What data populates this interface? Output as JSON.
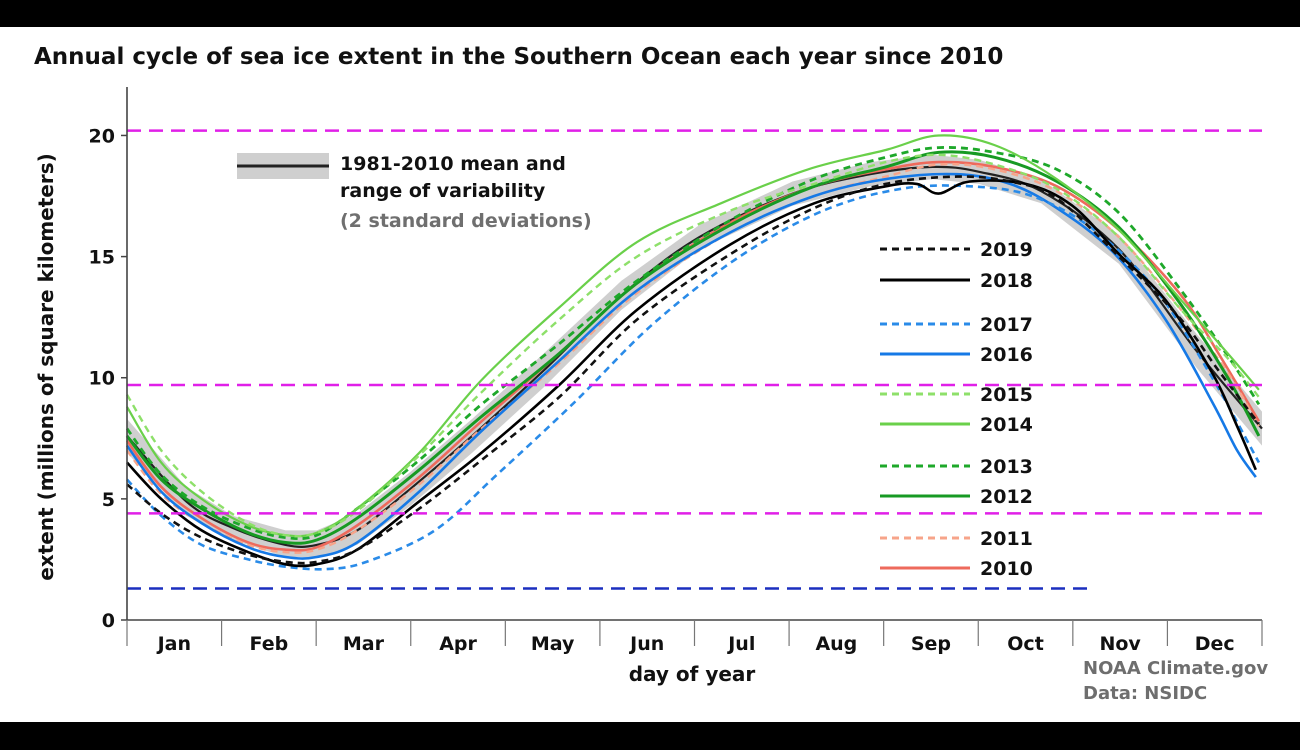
{
  "chart_data": {
    "type": "line",
    "title": "Annual cycle of sea ice extent in the Southern Ocean each year since 2010",
    "xlabel": "day of year",
    "ylabel": "extent (millions of square kilometers)",
    "xlim": [
      1,
      366
    ],
    "ylim": [
      0,
      22
    ],
    "yticks": [
      0,
      5,
      10,
      15,
      20
    ],
    "months": [
      "Jan",
      "Feb",
      "Mar",
      "Apr",
      "May",
      "Jun",
      "Jul",
      "Aug",
      "Sep",
      "Oct",
      "Nov",
      "Dec"
    ],
    "legend_placement": "upper-left and right-center",
    "band": {
      "label_line1": "1981-2010 mean and",
      "label_line2": "range of variability",
      "label_line3": "(2 standard deviations)",
      "mean": [
        [
          1,
          7.6
        ],
        [
          20,
          4.9
        ],
        [
          35,
          3.8
        ],
        [
          52,
          3.1
        ],
        [
          62,
          3.1
        ],
        [
          75,
          3.7
        ],
        [
          92,
          5.4
        ],
        [
          112,
          7.6
        ],
        [
          135,
          10.3
        ],
        [
          160,
          13.4
        ],
        [
          185,
          15.8
        ],
        [
          215,
          17.6
        ],
        [
          240,
          18.4
        ],
        [
          260,
          18.7
        ],
        [
          275,
          18.5
        ],
        [
          295,
          17.7
        ],
        [
          320,
          15.3
        ],
        [
          345,
          11.1
        ],
        [
          366,
          7.9
        ]
      ],
      "upper": [
        [
          1,
          8.3
        ],
        [
          20,
          5.5
        ],
        [
          35,
          4.3
        ],
        [
          52,
          3.7
        ],
        [
          62,
          3.7
        ],
        [
          75,
          4.4
        ],
        [
          92,
          6.1
        ],
        [
          112,
          8.3
        ],
        [
          135,
          11.0
        ],
        [
          160,
          14.0
        ],
        [
          185,
          16.3
        ],
        [
          215,
          18.1
        ],
        [
          240,
          18.9
        ],
        [
          260,
          19.2
        ],
        [
          275,
          19.0
        ],
        [
          295,
          18.2
        ],
        [
          320,
          15.9
        ],
        [
          345,
          11.8
        ],
        [
          366,
          8.6
        ]
      ],
      "lower": [
        [
          1,
          6.9
        ],
        [
          20,
          4.3
        ],
        [
          35,
          3.3
        ],
        [
          52,
          2.6
        ],
        [
          62,
          2.6
        ],
        [
          75,
          3.1
        ],
        [
          92,
          4.7
        ],
        [
          112,
          6.9
        ],
        [
          135,
          9.6
        ],
        [
          160,
          12.8
        ],
        [
          185,
          15.3
        ],
        [
          215,
          17.1
        ],
        [
          240,
          17.9
        ],
        [
          260,
          18.2
        ],
        [
          275,
          18.0
        ],
        [
          295,
          17.2
        ],
        [
          320,
          14.7
        ],
        [
          345,
          10.4
        ],
        [
          366,
          7.2
        ]
      ],
      "line_color": "#222222",
      "band_color": "#cfcfcf"
    },
    "series": [
      {
        "name": "2019",
        "color": "#111111",
        "dashed": true,
        "width": 2.6,
        "points": [
          [
            1,
            5.6
          ],
          [
            12,
            4.4
          ],
          [
            25,
            3.4
          ],
          [
            40,
            2.7
          ],
          [
            52,
            2.4
          ],
          [
            62,
            2.4
          ],
          [
            75,
            2.9
          ],
          [
            95,
            4.6
          ],
          [
            115,
            6.6
          ],
          [
            140,
            9.2
          ],
          [
            165,
            12.4
          ],
          [
            195,
            15.1
          ],
          [
            222,
            17.0
          ],
          [
            245,
            18.0
          ],
          [
            268,
            18.3
          ],
          [
            285,
            18.1
          ],
          [
            300,
            17.4
          ],
          [
            320,
            15.0
          ],
          [
            340,
            12.4
          ],
          [
            352,
            10.3
          ],
          [
            365,
            8.1
          ]
        ]
      },
      {
        "name": "2018",
        "color": "#000000",
        "dashed": false,
        "width": 2.6,
        "points": [
          [
            1,
            6.5
          ],
          [
            12,
            5.0
          ],
          [
            25,
            3.7
          ],
          [
            40,
            2.8
          ],
          [
            52,
            2.3
          ],
          [
            62,
            2.3
          ],
          [
            75,
            2.9
          ],
          [
            95,
            4.9
          ],
          [
            115,
            6.9
          ],
          [
            140,
            9.7
          ],
          [
            165,
            12.8
          ],
          [
            195,
            15.5
          ],
          [
            222,
            17.2
          ],
          [
            245,
            17.9
          ],
          [
            255,
            18.0
          ],
          [
            262,
            17.6
          ],
          [
            272,
            18.1
          ],
          [
            290,
            18.0
          ],
          [
            305,
            17.1
          ],
          [
            320,
            15.1
          ],
          [
            335,
            13.2
          ],
          [
            350,
            10.2
          ],
          [
            358,
            8.0
          ],
          [
            364,
            6.2
          ]
        ]
      },
      {
        "name": "2017",
        "color": "#2a8be8",
        "dashed": true,
        "width": 2.6,
        "points": [
          [
            1,
            5.8
          ],
          [
            12,
            4.3
          ],
          [
            25,
            3.1
          ],
          [
            40,
            2.5
          ],
          [
            52,
            2.2
          ],
          [
            65,
            2.1
          ],
          [
            78,
            2.4
          ],
          [
            100,
            3.7
          ],
          [
            120,
            6.0
          ],
          [
            145,
            9.0
          ],
          [
            170,
            12.2
          ],
          [
            198,
            15.0
          ],
          [
            225,
            16.9
          ],
          [
            250,
            17.8
          ],
          [
            272,
            17.9
          ],
          [
            292,
            17.5
          ],
          [
            312,
            16.1
          ],
          [
            332,
            13.6
          ],
          [
            350,
            10.0
          ],
          [
            365,
            6.5
          ]
        ]
      },
      {
        "name": "2016",
        "color": "#1679e6",
        "dashed": false,
        "width": 2.6,
        "points": [
          [
            1,
            7.2
          ],
          [
            12,
            5.3
          ],
          [
            25,
            4.0
          ],
          [
            40,
            3.0
          ],
          [
            52,
            2.6
          ],
          [
            62,
            2.6
          ],
          [
            75,
            3.2
          ],
          [
            95,
            5.3
          ],
          [
            115,
            7.8
          ],
          [
            140,
            10.7
          ],
          [
            165,
            13.6
          ],
          [
            195,
            16.0
          ],
          [
            222,
            17.5
          ],
          [
            245,
            18.2
          ],
          [
            268,
            18.4
          ],
          [
            285,
            18.0
          ],
          [
            300,
            17.0
          ],
          [
            318,
            15.2
          ],
          [
            335,
            12.4
          ],
          [
            350,
            9.0
          ],
          [
            358,
            7.0
          ],
          [
            364,
            5.9
          ]
        ]
      },
      {
        "name": "2015",
        "color": "#8ee06a",
        "dashed": true,
        "width": 2.4,
        "points": [
          [
            1,
            9.3
          ],
          [
            12,
            7.0
          ],
          [
            25,
            5.3
          ],
          [
            40,
            4.0
          ],
          [
            52,
            3.5
          ],
          [
            62,
            3.6
          ],
          [
            75,
            4.5
          ],
          [
            95,
            6.8
          ],
          [
            115,
            9.4
          ],
          [
            140,
            12.4
          ],
          [
            165,
            15.0
          ],
          [
            195,
            16.9
          ],
          [
            222,
            18.0
          ],
          [
            245,
            18.9
          ],
          [
            262,
            19.2
          ],
          [
            280,
            18.8
          ],
          [
            300,
            17.8
          ],
          [
            320,
            15.8
          ],
          [
            340,
            12.8
          ],
          [
            355,
            10.8
          ],
          [
            365,
            9.2
          ]
        ]
      },
      {
        "name": "2014",
        "color": "#6ad04a",
        "dashed": false,
        "width": 2.2,
        "points": [
          [
            1,
            8.8
          ],
          [
            12,
            6.5
          ],
          [
            25,
            5.0
          ],
          [
            40,
            3.9
          ],
          [
            52,
            3.5
          ],
          [
            62,
            3.6
          ],
          [
            75,
            4.6
          ],
          [
            95,
            6.9
          ],
          [
            115,
            9.9
          ],
          [
            140,
            12.9
          ],
          [
            165,
            15.6
          ],
          [
            192,
            17.2
          ],
          [
            220,
            18.6
          ],
          [
            245,
            19.4
          ],
          [
            262,
            20.0
          ],
          [
            280,
            19.6
          ],
          [
            300,
            18.2
          ],
          [
            320,
            16.1
          ],
          [
            340,
            13.2
          ],
          [
            355,
            11.0
          ],
          [
            365,
            9.5
          ]
        ]
      },
      {
        "name": "2013",
        "color": "#1ea82a",
        "dashed": true,
        "width": 2.8,
        "points": [
          [
            1,
            7.9
          ],
          [
            12,
            6.0
          ],
          [
            25,
            4.7
          ],
          [
            40,
            3.8
          ],
          [
            52,
            3.4
          ],
          [
            62,
            3.5
          ],
          [
            75,
            4.6
          ],
          [
            95,
            6.6
          ],
          [
            115,
            8.9
          ],
          [
            140,
            11.4
          ],
          [
            165,
            14.0
          ],
          [
            195,
            16.5
          ],
          [
            222,
            18.2
          ],
          [
            245,
            19.1
          ],
          [
            262,
            19.5
          ],
          [
            280,
            19.3
          ],
          [
            300,
            18.6
          ],
          [
            320,
            16.8
          ],
          [
            340,
            13.6
          ],
          [
            355,
            10.9
          ],
          [
            365,
            8.9
          ]
        ]
      },
      {
        "name": "2012",
        "color": "#179a23",
        "dashed": false,
        "width": 3.0,
        "points": [
          [
            1,
            7.6
          ],
          [
            12,
            5.8
          ],
          [
            25,
            4.6
          ],
          [
            40,
            3.6
          ],
          [
            52,
            3.2
          ],
          [
            62,
            3.3
          ],
          [
            75,
            4.2
          ],
          [
            95,
            6.2
          ],
          [
            115,
            8.4
          ],
          [
            140,
            11.0
          ],
          [
            165,
            13.9
          ],
          [
            195,
            16.3
          ],
          [
            222,
            17.9
          ],
          [
            245,
            18.7
          ],
          [
            262,
            19.3
          ],
          [
            280,
            19.1
          ],
          [
            300,
            18.1
          ],
          [
            320,
            16.2
          ],
          [
            340,
            13.0
          ],
          [
            355,
            10.0
          ],
          [
            365,
            7.6
          ]
        ]
      },
      {
        "name": "2011",
        "color": "#f7a48a",
        "dashed": true,
        "width": 2.4,
        "points": [
          [
            1,
            7.0
          ],
          [
            12,
            5.2
          ],
          [
            25,
            4.0
          ],
          [
            40,
            3.1
          ],
          [
            52,
            2.8
          ],
          [
            62,
            2.9
          ],
          [
            75,
            3.7
          ],
          [
            95,
            5.6
          ],
          [
            115,
            7.9
          ],
          [
            140,
            10.6
          ],
          [
            165,
            13.5
          ],
          [
            195,
            16.0
          ],
          [
            222,
            17.5
          ],
          [
            245,
            18.3
          ],
          [
            262,
            18.8
          ],
          [
            280,
            18.6
          ],
          [
            300,
            17.7
          ],
          [
            320,
            15.8
          ],
          [
            340,
            12.8
          ],
          [
            355,
            10.2
          ],
          [
            365,
            8.0
          ]
        ]
      },
      {
        "name": "2010",
        "color": "#ee6a5c",
        "dashed": false,
        "width": 2.6,
        "points": [
          [
            1,
            7.4
          ],
          [
            12,
            5.5
          ],
          [
            25,
            4.2
          ],
          [
            40,
            3.2
          ],
          [
            52,
            2.9
          ],
          [
            62,
            3.0
          ],
          [
            75,
            3.9
          ],
          [
            95,
            5.9
          ],
          [
            115,
            8.2
          ],
          [
            140,
            11.0
          ],
          [
            165,
            13.9
          ],
          [
            195,
            16.4
          ],
          [
            222,
            17.9
          ],
          [
            245,
            18.6
          ],
          [
            262,
            18.9
          ],
          [
            280,
            18.7
          ],
          [
            300,
            17.9
          ],
          [
            320,
            16.1
          ],
          [
            340,
            13.4
          ],
          [
            352,
            11.0
          ],
          [
            365,
            8.2
          ]
        ]
      }
    ],
    "reference_lines": [
      {
        "y": 20.2,
        "color": "#e020e8",
        "x_from": 1,
        "x_to": 366
      },
      {
        "y": 9.7,
        "color": "#e020e8",
        "x_from": 1,
        "x_to": 366
      },
      {
        "y": 4.4,
        "color": "#e020e8",
        "x_from": 1,
        "x_to": 366
      },
      {
        "y": 1.3,
        "color": "#1b2fbf",
        "x_from": 1,
        "x_to": 310
      }
    ],
    "credit_line1": "NOAA Climate.gov",
    "credit_line2": "Data: NSIDC"
  }
}
